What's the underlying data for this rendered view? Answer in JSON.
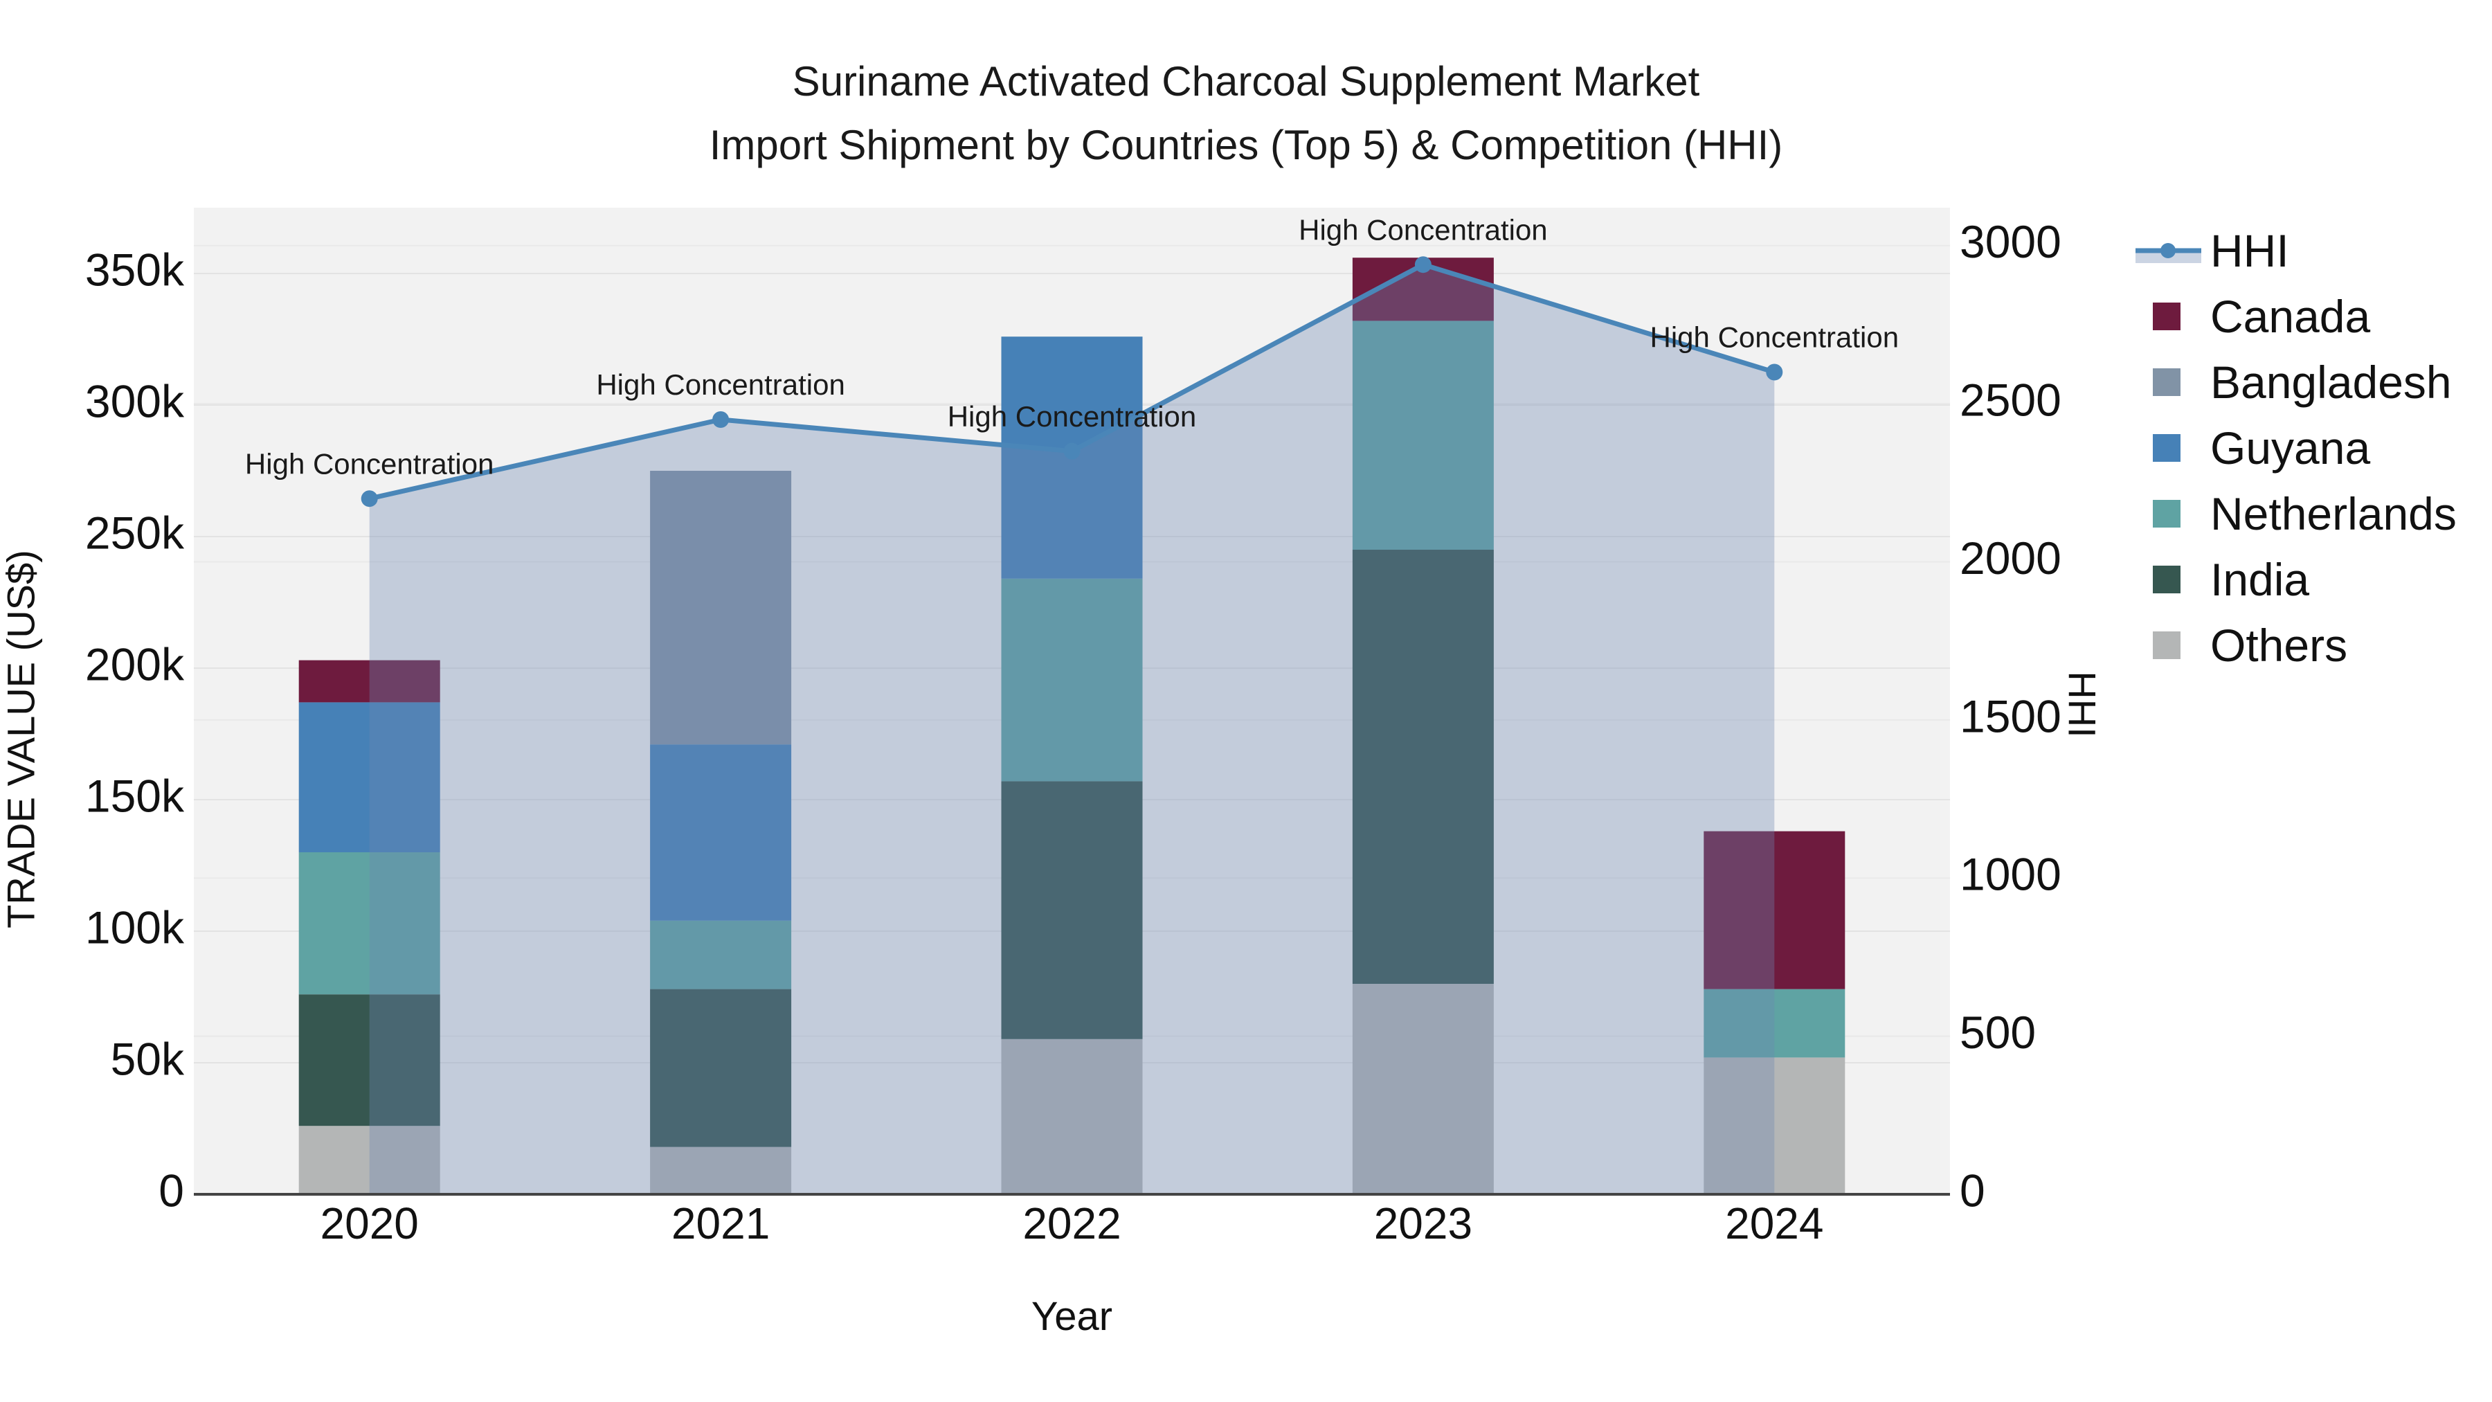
{
  "chart_data": {
    "type": "combo-stacked-bar-line-area",
    "title": "Suriname Activated Charcoal Supplement Market",
    "subtitle": "Import Shipment by Countries (Top 5) & Competition (HHI)",
    "xlabel": "Year",
    "ylabel": "TRADE VALUE (US$)",
    "y2label": "HHI",
    "categories": [
      "2020",
      "2021",
      "2022",
      "2023",
      "2024"
    ],
    "series": [
      {
        "name": "Canada",
        "color": "#6E1B3E",
        "values": [
          16000,
          0,
          0,
          24000,
          60000
        ]
      },
      {
        "name": "Bangladesh",
        "color": "#8193A6",
        "values": [
          0,
          104000,
          0,
          0,
          0
        ]
      },
      {
        "name": "Guyana",
        "color": "#4681B7",
        "values": [
          57000,
          67000,
          92000,
          0,
          0
        ]
      },
      {
        "name": "Netherlands",
        "color": "#5FA3A3",
        "values": [
          54000,
          26000,
          77000,
          87000,
          26000
        ]
      },
      {
        "name": "India",
        "color": "#365750",
        "values": [
          50000,
          60000,
          98000,
          165000,
          0
        ]
      },
      {
        "name": "Others",
        "color": "#B4B6B6",
        "values": [
          26000,
          18000,
          59000,
          80000,
          52000
        ]
      }
    ],
    "stack_order": [
      "Others",
      "India",
      "Netherlands",
      "Guyana",
      "Bangladesh",
      "Canada"
    ],
    "line_series": {
      "name": "HHI",
      "color": "#4A86B8",
      "area_color": "rgba(108,135,178,0.35)",
      "values": [
        2200,
        2450,
        2350,
        2940,
        2600
      ]
    },
    "annotations": [
      "High Concentration",
      "High Concentration",
      "High Concentration",
      "High Concentration",
      "High Concentration"
    ],
    "y_ticks": {
      "values": [
        0,
        50000,
        100000,
        150000,
        200000,
        250000,
        300000,
        350000
      ],
      "labels": [
        "0",
        "50k",
        "100k",
        "150k",
        "200k",
        "250k",
        "300k",
        "350k"
      ]
    },
    "y2_ticks": {
      "values": [
        0,
        500,
        1000,
        1500,
        2000,
        2500,
        3000
      ],
      "labels": [
        "0",
        "500",
        "1000",
        "1500",
        "2000",
        "2500",
        "3000"
      ]
    },
    "ylim": [
      0,
      375000
    ],
    "y2lim": [
      0,
      3120
    ],
    "grid": true,
    "legend_position": "right",
    "plot_bg": "#f2f2f2",
    "grid_color_left": "#e3e3e3",
    "grid_color_right": "#e9e9e9",
    "axis_line_color": "#444444",
    "legend": {
      "items": [
        {
          "label": "HHI",
          "type": "line",
          "color": "#4A86B8",
          "band_color": "#CBD4E3"
        },
        {
          "label": "Canada",
          "type": "swatch",
          "color": "#6E1B3E"
        },
        {
          "label": "Bangladesh",
          "type": "swatch",
          "color": "#8193A6"
        },
        {
          "label": "Guyana",
          "type": "swatch",
          "color": "#4681B7"
        },
        {
          "label": "Netherlands",
          "type": "swatch",
          "color": "#5FA3A3"
        },
        {
          "label": "India",
          "type": "swatch",
          "color": "#365750"
        },
        {
          "label": "Others",
          "type": "swatch",
          "color": "#B4B6B6"
        }
      ]
    }
  }
}
